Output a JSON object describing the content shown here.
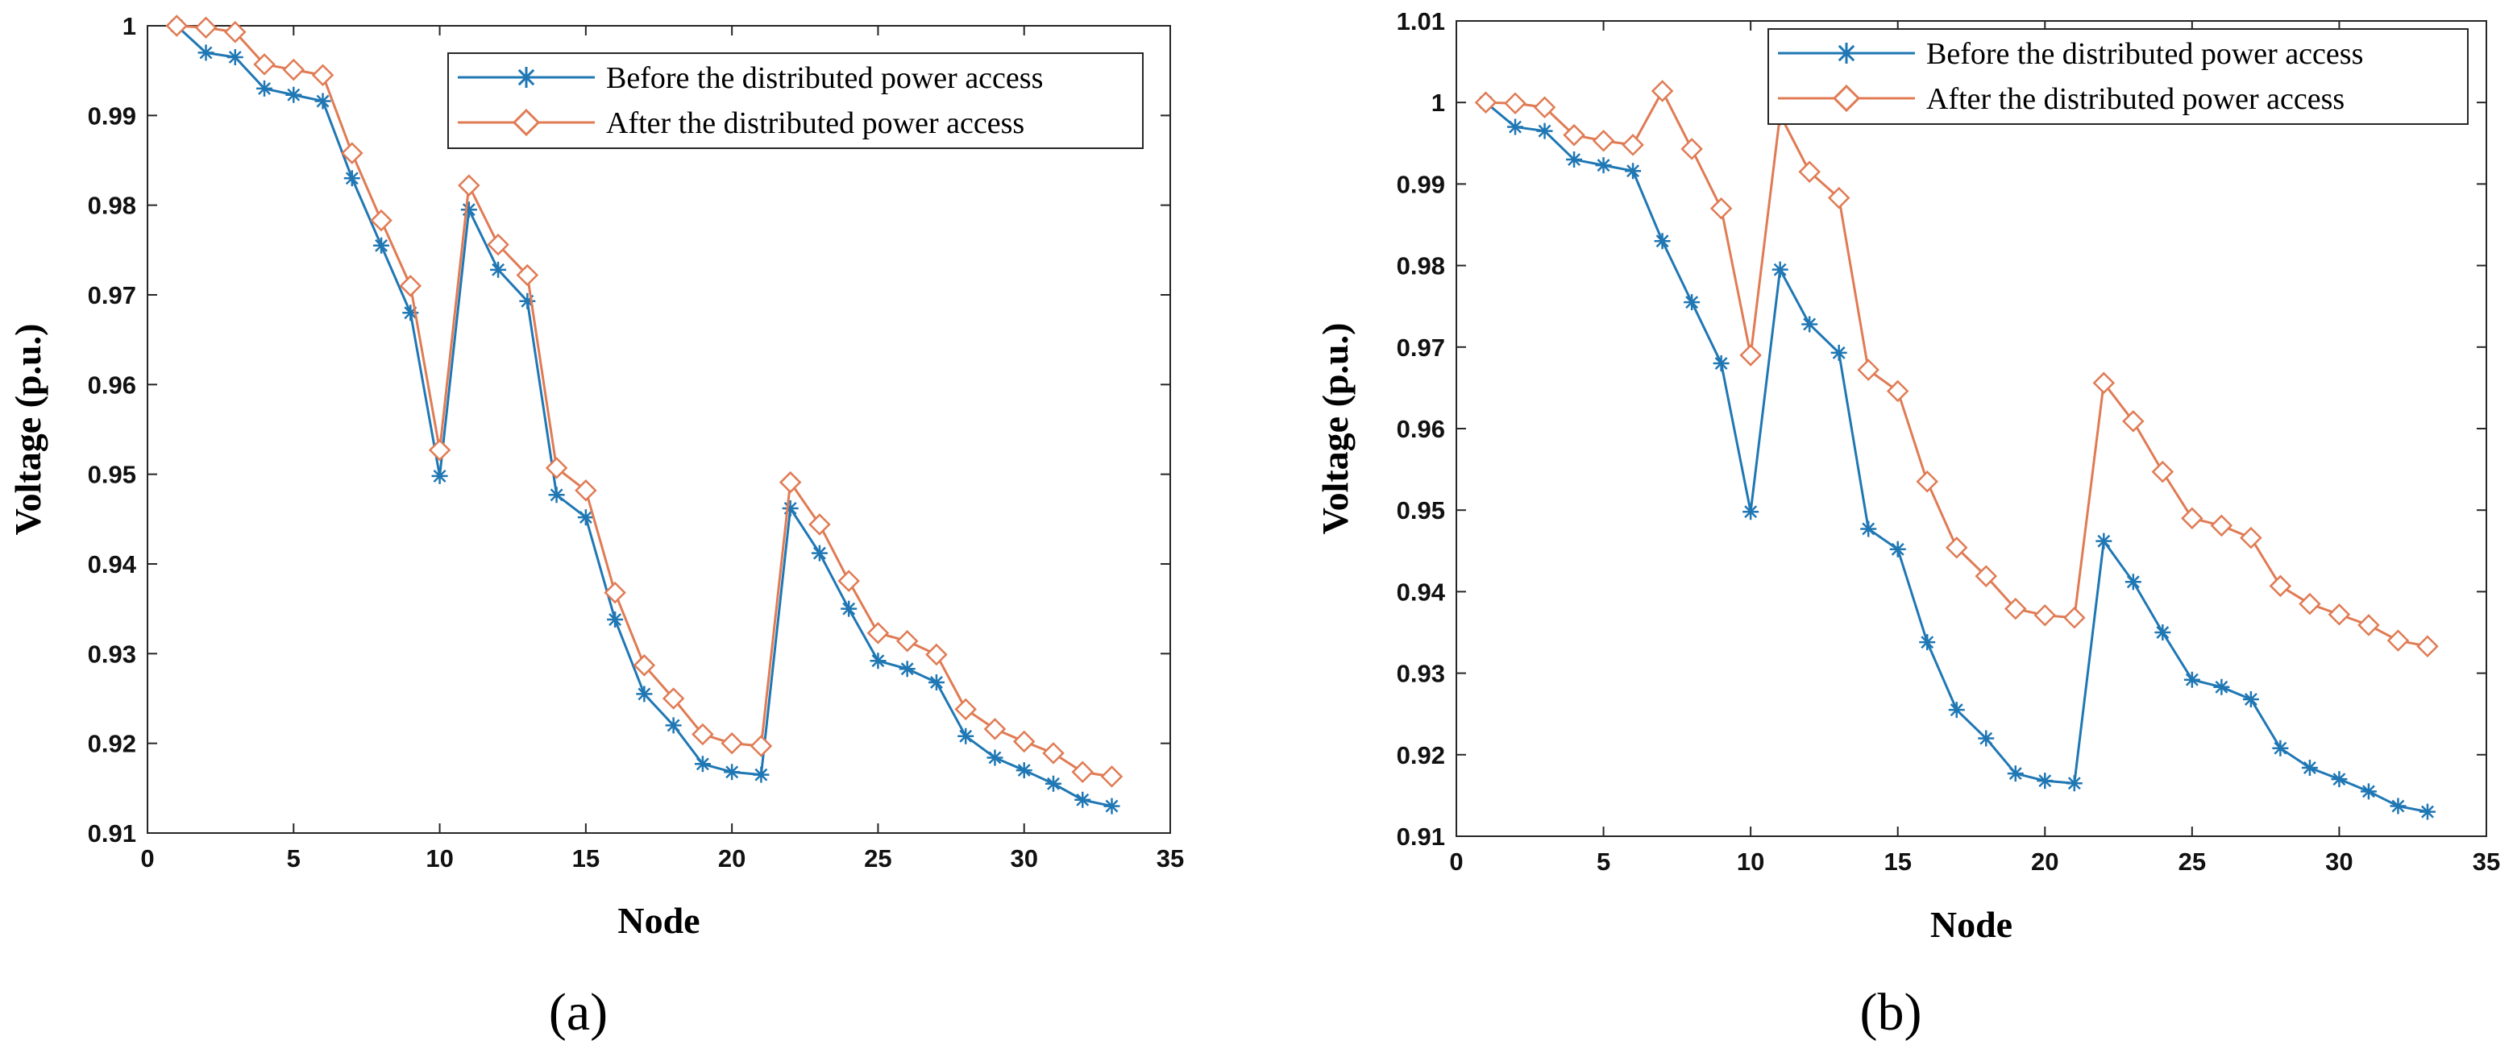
{
  "chart_data": [
    {
      "type": "line",
      "panel_label": "(a)",
      "xlabel": "Node",
      "ylabel": "Voltage (p.u.)",
      "xlim": [
        0,
        35
      ],
      "ylim": [
        0.91,
        1.0
      ],
      "xticks": [
        "0",
        "5",
        "10",
        "15",
        "20",
        "25",
        "30",
        "35"
      ],
      "yticks": [
        "0.91",
        "0.92",
        "0.93",
        "0.94",
        "0.95",
        "0.96",
        "0.97",
        "0.98",
        "0.99",
        "1"
      ],
      "grid": false,
      "legend_position": "top-right",
      "x": [
        1,
        2,
        3,
        4,
        5,
        6,
        7,
        8,
        9,
        10,
        11,
        12,
        13,
        14,
        15,
        16,
        17,
        18,
        19,
        20,
        21,
        22,
        23,
        24,
        25,
        26,
        27,
        28,
        29,
        30,
        31,
        32,
        33
      ],
      "series": [
        {
          "name": "Before the distributed power access",
          "color": "#1f77b4",
          "marker": "asterisk",
          "values": [
            1.0,
            0.997,
            0.9965,
            0.993,
            0.9923,
            0.9916,
            0.983,
            0.9755,
            0.968,
            0.9498,
            0.9795,
            0.9728,
            0.9693,
            0.9477,
            0.9452,
            0.9338,
            0.9255,
            0.922,
            0.9177,
            0.9168,
            0.9165,
            0.9462,
            0.9412,
            0.935,
            0.9292,
            0.9283,
            0.9268,
            0.9208,
            0.9184,
            0.917,
            0.9155,
            0.9137,
            0.913
          ]
        },
        {
          "name": "After the distributed power access",
          "color": "#e07b54",
          "marker": "diamond",
          "values": [
            1.0,
            0.9998,
            0.9993,
            0.9957,
            0.9951,
            0.9945,
            0.9858,
            0.9783,
            0.971,
            0.9527,
            0.9822,
            0.9756,
            0.9722,
            0.9507,
            0.9482,
            0.9368,
            0.9287,
            0.925,
            0.921,
            0.92,
            0.9197,
            0.9491,
            0.9444,
            0.9381,
            0.9323,
            0.9314,
            0.9299,
            0.9238,
            0.9216,
            0.9202,
            0.9189,
            0.9168,
            0.9163
          ]
        }
      ]
    },
    {
      "type": "line",
      "panel_label": "(b)",
      "xlabel": "Node",
      "ylabel": "Voltage (p.u.)",
      "xlim": [
        0,
        35
      ],
      "ylim": [
        0.91,
        1.01
      ],
      "xticks": [
        "0",
        "5",
        "10",
        "15",
        "20",
        "25",
        "30",
        "35"
      ],
      "yticks": [
        "0.91",
        "0.92",
        "0.93",
        "0.94",
        "0.95",
        "0.96",
        "0.97",
        "0.98",
        "0.99",
        "1",
        "1.01"
      ],
      "grid": false,
      "legend_position": "top-right",
      "x": [
        1,
        2,
        3,
        4,
        5,
        6,
        7,
        8,
        9,
        10,
        11,
        12,
        13,
        14,
        15,
        16,
        17,
        18,
        19,
        20,
        21,
        22,
        23,
        24,
        25,
        26,
        27,
        28,
        29,
        30,
        31,
        32,
        33
      ],
      "series": [
        {
          "name": "Before the distributed power access",
          "color": "#1f77b4",
          "marker": "asterisk",
          "values": [
            1.0,
            0.997,
            0.9965,
            0.993,
            0.9923,
            0.9916,
            0.983,
            0.9755,
            0.968,
            0.9498,
            0.9795,
            0.9728,
            0.9693,
            0.9477,
            0.9452,
            0.9338,
            0.9255,
            0.922,
            0.9177,
            0.9168,
            0.9165,
            0.9462,
            0.9412,
            0.935,
            0.9292,
            0.9283,
            0.9268,
            0.9208,
            0.9184,
            0.917,
            0.9155,
            0.9137,
            0.913
          ]
        },
        {
          "name": "After the distributed power access",
          "color": "#e07b54",
          "marker": "diamond",
          "values": [
            1.0,
            0.9999,
            0.9994,
            0.996,
            0.9953,
            0.9948,
            1.0014,
            0.9943,
            0.987,
            0.969,
            0.9985,
            0.9915,
            0.9883,
            0.9672,
            0.9646,
            0.9535,
            0.9454,
            0.9419,
            0.9379,
            0.9371,
            0.9368,
            0.9656,
            0.9609,
            0.9547,
            0.949,
            0.9481,
            0.9466,
            0.9407,
            0.9385,
            0.9372,
            0.9359,
            0.934,
            0.9333
          ]
        }
      ]
    }
  ]
}
